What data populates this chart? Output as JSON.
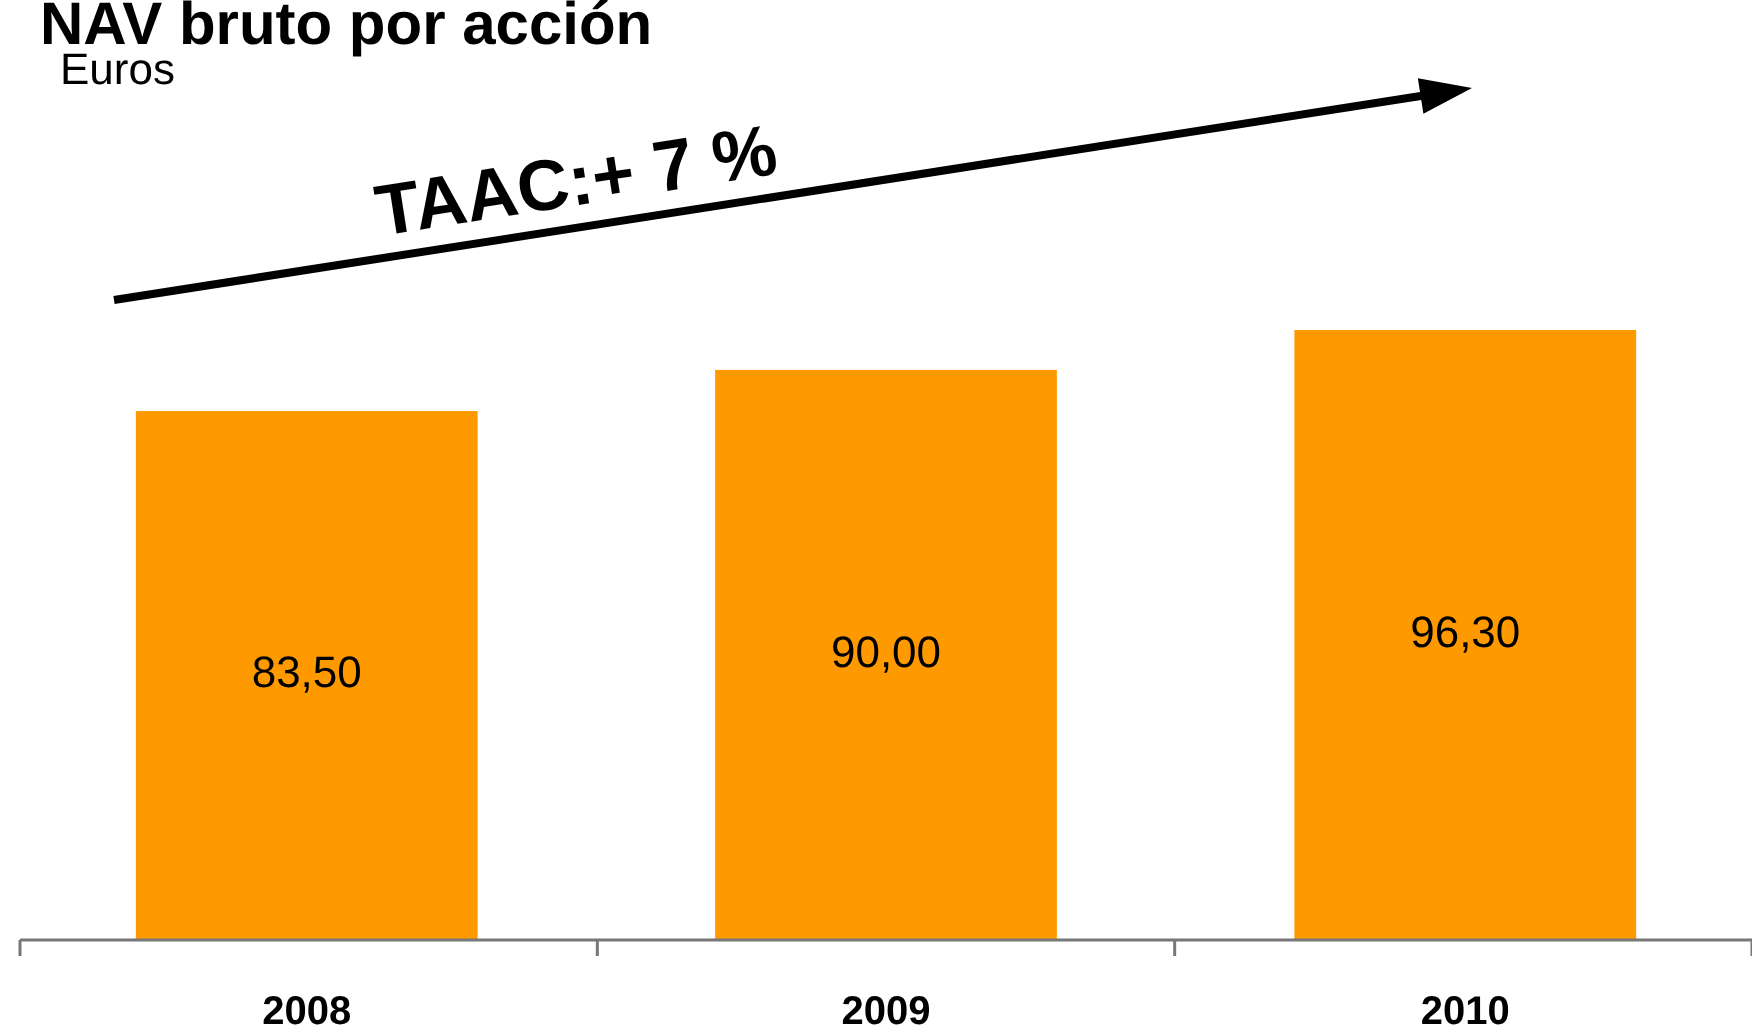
{
  "chart_data": {
    "type": "bar",
    "title": "NAV bruto por acción",
    "subtitle": "Euros",
    "categories": [
      "2008",
      "2009",
      "2010"
    ],
    "values": [
      83.5,
      90,
      96.3
    ],
    "color": "#ff9900",
    "value_labels": [
      "83,50",
      "90,00",
      "96,30"
    ],
    "tick_labels": "x",
    "annotations": [
      "TAAC:+ 7 %"
    ]
  }
}
